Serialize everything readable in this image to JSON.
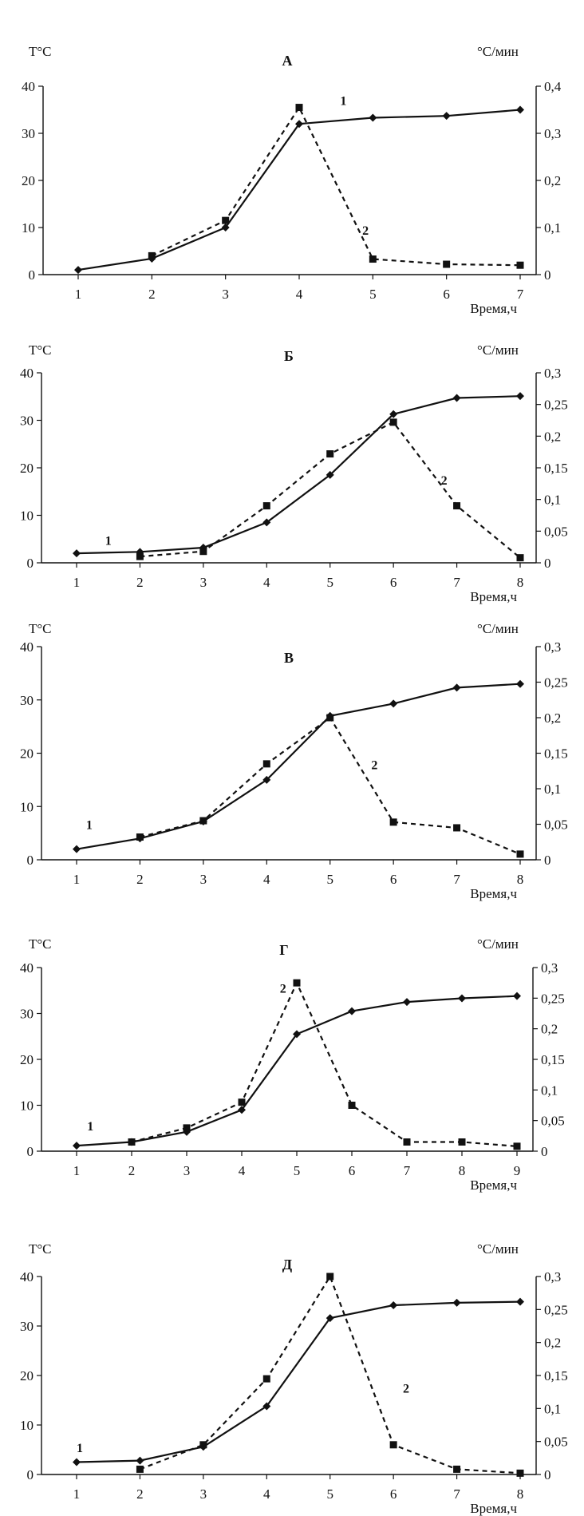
{
  "chart_data": [
    {
      "type": "line",
      "title": "А",
      "ylabel": "T°C",
      "y2label": "°C/мин",
      "xlabel": "Время,ч",
      "x": [
        1,
        2,
        3,
        4,
        5,
        6,
        7
      ],
      "xticks": [
        "1",
        "2",
        "3",
        "4",
        "5",
        "6",
        "7"
      ],
      "ylim": [
        0,
        40
      ],
      "yticks": [
        "0",
        "10",
        "20",
        "30",
        "40"
      ],
      "y2lim": [
        0,
        0.4
      ],
      "y2ticks": [
        "0",
        "0,1",
        "0,2",
        "0,3",
        "0,4"
      ],
      "series": [
        {
          "name": "1",
          "axis": "left",
          "style": "solid",
          "marker": "diamond",
          "values": [
            1,
            3.4,
            10,
            32,
            33.3,
            33.7,
            35
          ]
        },
        {
          "name": "2",
          "axis": "right",
          "style": "dashed",
          "marker": "square",
          "x": [
            2,
            3,
            4,
            5,
            6,
            7
          ],
          "values": [
            0.04,
            0.115,
            0.355,
            0.033,
            0.022,
            0.02
          ]
        }
      ],
      "labels": [
        {
          "text": "1",
          "x": 4.6,
          "y": 36
        },
        {
          "text": "2",
          "x": 4.9,
          "y": 8.5
        }
      ]
    },
    {
      "type": "line",
      "title": "Б",
      "ylabel": "T°C",
      "y2label": "°C/мин",
      "xlabel": "Время,ч",
      "x": [
        1,
        2,
        3,
        4,
        5,
        6,
        7,
        8
      ],
      "xticks": [
        "1",
        "2",
        "3",
        "4",
        "5",
        "6",
        "7",
        "8"
      ],
      "ylim": [
        0,
        40
      ],
      "yticks": [
        "0",
        "10",
        "20",
        "30",
        "40"
      ],
      "y2lim": [
        0,
        0.3
      ],
      "y2ticks": [
        "0",
        "0,05",
        "0,1",
        "0,15",
        "0,2",
        "0,25",
        "0,3"
      ],
      "series": [
        {
          "name": "1",
          "axis": "left",
          "style": "solid",
          "marker": "diamond",
          "values": [
            2,
            2.3,
            3.2,
            8.5,
            18.5,
            31.3,
            34.7,
            35.1
          ]
        },
        {
          "name": "2",
          "axis": "right",
          "style": "dashed",
          "marker": "square",
          "x": [
            2,
            3,
            4,
            5,
            6,
            7,
            8
          ],
          "values": [
            0.01,
            0.018,
            0.09,
            0.172,
            0.222,
            0.09,
            0.008
          ]
        }
      ],
      "labels": [
        {
          "text": "1",
          "x": 1.5,
          "y": 3.8
        },
        {
          "text": "2",
          "x": 6.8,
          "y": 16.5
        }
      ]
    },
    {
      "type": "line",
      "title": "В",
      "ylabel": "T°C",
      "y2label": "°C/мин",
      "xlabel": "Время,ч",
      "x": [
        1,
        2,
        3,
        4,
        5,
        6,
        7,
        8
      ],
      "xticks": [
        "1",
        "2",
        "3",
        "4",
        "5",
        "6",
        "7",
        "8"
      ],
      "ylim": [
        0,
        40
      ],
      "yticks": [
        "0",
        "10",
        "20",
        "30",
        "40"
      ],
      "y2lim": [
        0,
        0.3
      ],
      "y2ticks": [
        "0",
        "0,05",
        "0,1",
        "0,15",
        "0,2",
        "0,25",
        "0,3"
      ],
      "series": [
        {
          "name": "1",
          "axis": "left",
          "style": "solid",
          "marker": "diamond",
          "values": [
            2,
            4,
            7.2,
            15,
            27,
            29.3,
            32.3,
            33
          ]
        },
        {
          "name": "2",
          "axis": "right",
          "style": "dashed",
          "marker": "square",
          "x": [
            2,
            3,
            4,
            5,
            6,
            7,
            8
          ],
          "values": [
            0.032,
            0.055,
            0.135,
            0.2,
            0.053,
            0.045,
            0.008
          ]
        }
      ],
      "labels": [
        {
          "text": "1",
          "x": 1.2,
          "y": 5.8
        },
        {
          "text": "2",
          "x": 5.7,
          "y": 17
        }
      ]
    },
    {
      "type": "line",
      "title": "Г",
      "ylabel": "T°C",
      "y2label": "°C/мин",
      "xlabel": "Время,ч",
      "x": [
        1,
        2,
        3,
        4,
        5,
        6,
        7,
        8,
        9
      ],
      "xticks": [
        "1",
        "2",
        "3",
        "4",
        "5",
        "6",
        "7",
        "8",
        "9"
      ],
      "ylim": [
        0,
        40
      ],
      "yticks": [
        "0",
        "10",
        "20",
        "30",
        "40"
      ],
      "y2lim": [
        0,
        0.3
      ],
      "y2ticks": [
        "0",
        "0,05",
        "0,1",
        "0,15",
        "0,2",
        "0,25",
        "0,3"
      ],
      "series": [
        {
          "name": "1",
          "axis": "left",
          "style": "solid",
          "marker": "diamond",
          "values": [
            1.2,
            2,
            4.2,
            9,
            25.5,
            30.5,
            32.5,
            33.3,
            33.8
          ]
        },
        {
          "name": "2",
          "axis": "right",
          "style": "dashed",
          "marker": "square",
          "x": [
            2,
            3,
            4,
            5,
            6,
            7,
            8,
            9
          ],
          "values": [
            0.015,
            0.038,
            0.08,
            0.275,
            0.075,
            0.015,
            0.015,
            0.008
          ]
        }
      ],
      "labels": [
        {
          "text": "1",
          "x": 1.25,
          "y": 4.5
        },
        {
          "text": "2",
          "x": 4.75,
          "y": 34.5
        }
      ]
    },
    {
      "type": "line",
      "title": "Д",
      "ylabel": "T°C",
      "y2label": "°C/мин",
      "xlabel": "Время,ч",
      "x": [
        1,
        2,
        3,
        4,
        5,
        6,
        7,
        8
      ],
      "xticks": [
        "1",
        "2",
        "3",
        "4",
        "5",
        "6",
        "7",
        "8"
      ],
      "ylim": [
        0,
        40
      ],
      "yticks": [
        "0",
        "10",
        "20",
        "30",
        "40"
      ],
      "y2lim": [
        0,
        0.3
      ],
      "y2ticks": [
        "0",
        "0,05",
        "0,1",
        "0,15",
        "0,2",
        "0,25",
        "0,3"
      ],
      "series": [
        {
          "name": "1",
          "axis": "left",
          "style": "solid",
          "marker": "diamond",
          "values": [
            2.5,
            2.8,
            5.6,
            13.8,
            31.6,
            34.2,
            34.7,
            34.9
          ]
        },
        {
          "name": "2",
          "axis": "right",
          "style": "dashed",
          "marker": "square",
          "x": [
            2,
            3,
            4,
            5,
            6,
            7,
            8
          ],
          "values": [
            0.008,
            0.045,
            0.145,
            0.3,
            0.045,
            0.008,
            0.002
          ]
        }
      ],
      "labels": [
        {
          "text": "1",
          "x": 1.05,
          "y": 4.5
        },
        {
          "text": "2",
          "x": 6.2,
          "y": 16.5
        }
      ]
    }
  ]
}
